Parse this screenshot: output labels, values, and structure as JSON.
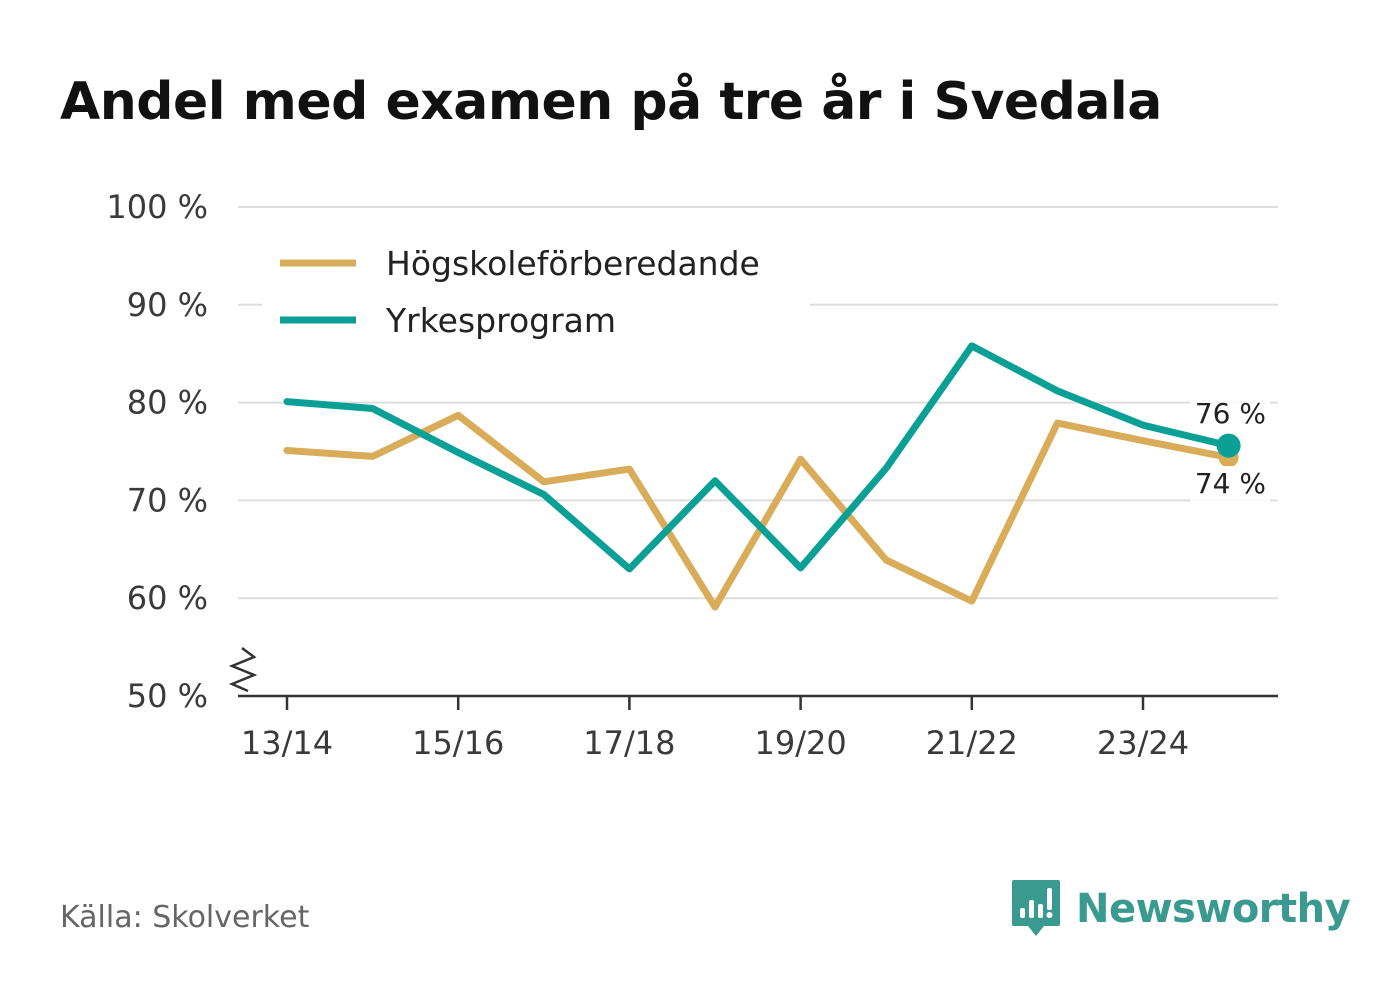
{
  "title": "Andel med examen på tre år i Svedala",
  "source": "Källa: Skolverket",
  "brand": "Newsworthy",
  "colors": {
    "hogskole": "#d9ac5a",
    "yrke": "#0aa095",
    "grid": "#dddddd",
    "axis": "#333333"
  },
  "chart_data": {
    "type": "line",
    "title": "Andel med examen på tre år i Svedala",
    "xlabel": "",
    "ylabel": "",
    "x": [
      "13/14",
      "14/15",
      "15/16",
      "16/17",
      "17/18",
      "18/19",
      "19/20",
      "20/21",
      "21/22",
      "22/23",
      "23/24",
      "24/25"
    ],
    "xtick_labels": [
      "13/14",
      "15/16",
      "17/18",
      "19/20",
      "21/22",
      "23/24"
    ],
    "ylim": [
      50,
      100
    ],
    "yticks": [
      50,
      60,
      70,
      80,
      90,
      100
    ],
    "ytick_labels": [
      "50 %",
      "60 %",
      "70 %",
      "80 %",
      "90 %",
      "100 %"
    ],
    "axis_break": true,
    "legend_position": "top-left",
    "series": [
      {
        "name": "Högskoleförberedande",
        "color": "#d9ac5a",
        "values": [
          75.1,
          74.5,
          78.7,
          71.9,
          73.2,
          59.1,
          74.2,
          63.9,
          59.7,
          77.9,
          76.1,
          74.4
        ],
        "end_label": "74 %"
      },
      {
        "name": "Yrkesprogram",
        "color": "#0aa095",
        "values": [
          80.1,
          79.4,
          74.9,
          70.6,
          63.0,
          72.0,
          63.1,
          73.3,
          85.8,
          81.2,
          77.7,
          75.6
        ],
        "end_label": "76 %"
      }
    ]
  }
}
